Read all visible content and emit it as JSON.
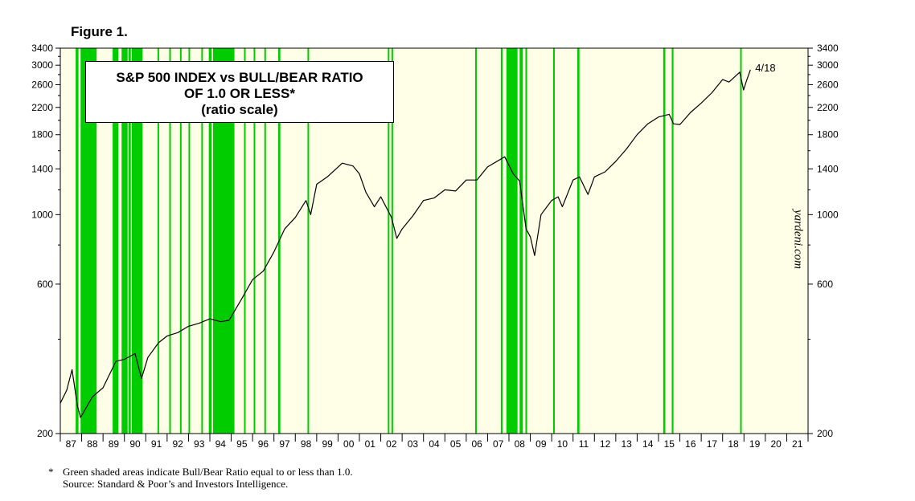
{
  "figure_label": "Figure 1.",
  "title_lines": [
    "S&P 500 INDEX vs BULL/BEAR RATIO",
    "OF 1.0 OR LESS*",
    "(ratio scale)"
  ],
  "watermark": "yardeni.com",
  "end_label": "4/18",
  "footnote": {
    "marker": "*",
    "text": "Green shaded areas indicate Bull/Bear Ratio equal to or less than 1.0.",
    "source": "Source: Standard & Poor’s and Investors Intelligence."
  },
  "colors": {
    "shading": "#00cc00",
    "background": "#fffee6",
    "line": "#000000"
  },
  "chart_data": {
    "type": "line",
    "y_scale": "log",
    "ylim": [
      200,
      3400
    ],
    "xlim": [
      1987.0,
      2022.0
    ],
    "y_ticks": [
      200,
      600,
      1000,
      1400,
      1800,
      2200,
      2600,
      3000,
      3400
    ],
    "x_tick_labels": [
      "87",
      "88",
      "89",
      "90",
      "91",
      "92",
      "93",
      "94",
      "95",
      "96",
      "97",
      "98",
      "99",
      "00",
      "01",
      "02",
      "03",
      "04",
      "05",
      "06",
      "07",
      "08",
      "09",
      "10",
      "11",
      "12",
      "13",
      "14",
      "15",
      "16",
      "17",
      "18",
      "19",
      "20",
      "21"
    ],
    "series": [
      {
        "values_x": [
          1987.0,
          1987.3,
          1987.55,
          1987.8,
          1987.95,
          1988.5,
          1989.0,
          1989.6,
          1990.0,
          1990.5,
          1990.8,
          1991.1,
          1991.6,
          1992.0,
          1992.5,
          1993.0,
          1993.5,
          1994.0,
          1994.5,
          1994.9,
          1995.5,
          1996.0,
          1996.5,
          1997.0,
          1997.5,
          1998.0,
          1998.5,
          1998.72,
          1999.0,
          1999.5,
          2000.2,
          2000.7,
          2001.0,
          2001.3,
          2001.7,
          2002.0,
          2002.5,
          2002.75,
          2003.0,
          2003.5,
          2004.0,
          2004.5,
          2005.0,
          2005.5,
          2006.0,
          2006.5,
          2007.0,
          2007.8,
          2008.2,
          2008.5,
          2008.8,
          2009.0,
          2009.2,
          2009.5,
          2010.0,
          2010.3,
          2010.5,
          2011.0,
          2011.3,
          2011.7,
          2012.0,
          2012.5,
          2013.0,
          2013.5,
          2014.0,
          2014.5,
          2015.0,
          2015.5,
          2015.7,
          2016.0,
          2016.5,
          2017.0,
          2017.5,
          2018.0,
          2018.3,
          2018.8,
          2018.98,
          2019.1,
          2019.3
        ],
        "values_y": [
          250,
          275,
          320,
          245,
          225,
          262,
          280,
          340,
          345,
          360,
          300,
          350,
          390,
          410,
          420,
          440,
          450,
          465,
          455,
          460,
          540,
          620,
          660,
          760,
          900,
          980,
          1110,
          1000,
          1250,
          1320,
          1460,
          1430,
          1350,
          1180,
          1060,
          1140,
          980,
          840,
          900,
          990,
          1110,
          1130,
          1200,
          1190,
          1290,
          1290,
          1420,
          1530,
          1350,
          1280,
          900,
          850,
          740,
          1000,
          1110,
          1140,
          1060,
          1290,
          1320,
          1160,
          1320,
          1370,
          1480,
          1620,
          1800,
          1950,
          2050,
          2090,
          1950,
          1940,
          2120,
          2270,
          2450,
          2700,
          2650,
          2850,
          2500,
          2650,
          2900
        ]
      }
    ],
    "shading_periods": [
      [
        1987.72,
        1987.85
      ],
      [
        1987.95,
        1988.7
      ],
      [
        1989.45,
        1989.72
      ],
      [
        1989.87,
        1990.15
      ],
      [
        1990.2,
        1990.3
      ],
      [
        1990.35,
        1990.85
      ],
      [
        1991.55,
        1991.62
      ],
      [
        1992.1,
        1992.16
      ],
      [
        1992.6,
        1992.66
      ],
      [
        1993.0,
        1993.07
      ],
      [
        1993.6,
        1993.66
      ],
      [
        1993.95,
        1994.08
      ],
      [
        1994.15,
        1995.15
      ],
      [
        1995.6,
        1995.66
      ],
      [
        1996.05,
        1996.1
      ],
      [
        1996.55,
        1996.6
      ],
      [
        1997.2,
        1997.3
      ],
      [
        1998.57,
        1998.63
      ],
      [
        2002.33,
        2002.4
      ],
      [
        2002.5,
        2002.57
      ],
      [
        2006.42,
        2006.48
      ],
      [
        2007.62,
        2007.7
      ],
      [
        2007.88,
        2008.4
      ],
      [
        2008.5,
        2008.65
      ],
      [
        2008.77,
        2008.85
      ],
      [
        2010.07,
        2010.12
      ],
      [
        2011.2,
        2011.3
      ],
      [
        2015.22,
        2015.32
      ],
      [
        2015.62,
        2015.7
      ],
      [
        2018.82,
        2018.87
      ]
    ]
  }
}
